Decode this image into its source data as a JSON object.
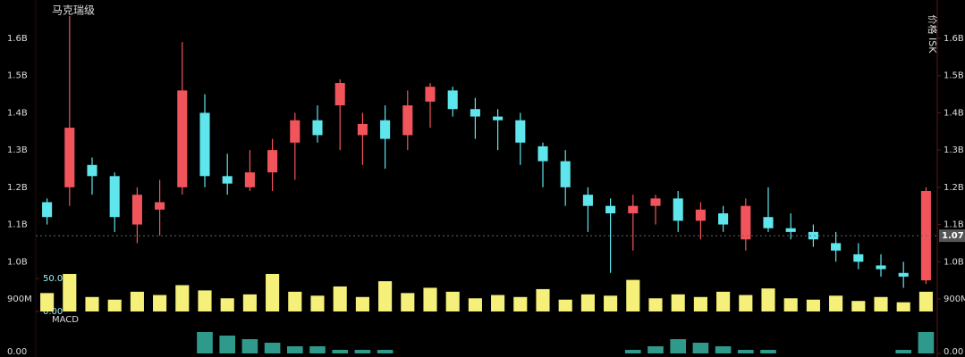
{
  "chart_data": {
    "type": "candlestick",
    "title": "马克瑞级",
    "y_label": "价格 ISK",
    "up_color": "#f2545b",
    "down_color": "#5ee6ec",
    "volume_color": "#f4f07a",
    "macd_color": "#2f9a8c",
    "open": [
      1160000000,
      1200000000,
      1260000000,
      1230000000,
      1100000000,
      1140000000,
      1200000000,
      1400000000,
      1230000000,
      1200000000,
      1240000000,
      1320000000,
      1380000000,
      1420000000,
      1340000000,
      1380000000,
      1340000000,
      1430000000,
      1460000000,
      1410000000,
      1390000000,
      1380000000,
      1310000000,
      1270000000,
      1180000000,
      1150000000,
      1130000000,
      1150000000,
      1170000000,
      1110000000,
      1130000000,
      1060000000,
      1120000000,
      1090000000,
      1080000000,
      1050000000,
      1020000000,
      990000000,
      970000000,
      950000000
    ],
    "high": [
      1170000000,
      1660000000,
      1280000000,
      1240000000,
      1200000000,
      1220000000,
      1590000000,
      1450000000,
      1290000000,
      1300000000,
      1330000000,
      1400000000,
      1420000000,
      1490000000,
      1400000000,
      1420000000,
      1460000000,
      1480000000,
      1470000000,
      1440000000,
      1410000000,
      1400000000,
      1320000000,
      1300000000,
      1200000000,
      1170000000,
      1180000000,
      1180000000,
      1190000000,
      1160000000,
      1150000000,
      1170000000,
      1200000000,
      1130000000,
      1100000000,
      1080000000,
      1050000000,
      1020000000,
      1000000000,
      1200000000
    ],
    "low": [
      1100000000,
      1150000000,
      1180000000,
      1080000000,
      1050000000,
      1070000000,
      1180000000,
      1200000000,
      1180000000,
      1190000000,
      1190000000,
      1220000000,
      1320000000,
      1300000000,
      1260000000,
      1250000000,
      1300000000,
      1360000000,
      1390000000,
      1330000000,
      1300000000,
      1260000000,
      1200000000,
      1150000000,
      1080000000,
      970000000,
      1030000000,
      1100000000,
      1080000000,
      1060000000,
      1080000000,
      1030000000,
      1080000000,
      1060000000,
      1040000000,
      1000000000,
      980000000,
      960000000,
      930000000,
      940000000
    ],
    "close": [
      1120000000,
      1360000000,
      1230000000,
      1120000000,
      1180000000,
      1160000000,
      1460000000,
      1230000000,
      1210000000,
      1240000000,
      1300000000,
      1380000000,
      1340000000,
      1480000000,
      1370000000,
      1330000000,
      1420000000,
      1470000000,
      1410000000,
      1390000000,
      1380000000,
      1320000000,
      1270000000,
      1200000000,
      1150000000,
      1130000000,
      1150000000,
      1170000000,
      1110000000,
      1140000000,
      1100000000,
      1150000000,
      1090000000,
      1080000000,
      1060000000,
      1030000000,
      1000000000,
      980000000,
      960000000,
      1190000000
    ],
    "volume": [
      28,
      57,
      22,
      18,
      30,
      25,
      40,
      32,
      20,
      26,
      57,
      30,
      24,
      38,
      22,
      46,
      28,
      36,
      30,
      20,
      25,
      22,
      34,
      18,
      26,
      24,
      48,
      20,
      26,
      22,
      30,
      25,
      35,
      20,
      18,
      24,
      16,
      22,
      14,
      30
    ],
    "macd": [
      0,
      0,
      0,
      0,
      0,
      0,
      0,
      6,
      5,
      4,
      3,
      2,
      2,
      1,
      1,
      1,
      0,
      0,
      0,
      0,
      0,
      0,
      0,
      0,
      0,
      0,
      1,
      2,
      4,
      3,
      2,
      1,
      1,
      0,
      0,
      0,
      0,
      0,
      1,
      6
    ],
    "ylim": [
      864000000,
      1703000000
    ],
    "yticks": [
      {
        "value": 900000000,
        "label": "900M"
      },
      {
        "value": 1000000000,
        "label": "1.0B"
      },
      {
        "value": 1100000000,
        "label": "1.1B"
      },
      {
        "value": 1200000000,
        "label": "1.2B"
      },
      {
        "value": 1300000000,
        "label": "1.3B"
      },
      {
        "value": 1400000000,
        "label": "1.4B"
      },
      {
        "value": 1500000000,
        "label": "1.5B"
      },
      {
        "value": 1600000000,
        "label": "1.6B"
      }
    ],
    "volume_ylim": [
      0,
      80
    ],
    "volume_yticks": [
      {
        "value": 0,
        "label": "0.00"
      },
      {
        "value": 50,
        "label": "50.0"
      }
    ],
    "macd_label": "MACD",
    "macd_ylim": [
      -1,
      10
    ],
    "macd_yticks": [
      {
        "value": 0,
        "label": "0.00"
      }
    ],
    "price_marker": {
      "value": 1070000000,
      "label": "1.07"
    }
  }
}
